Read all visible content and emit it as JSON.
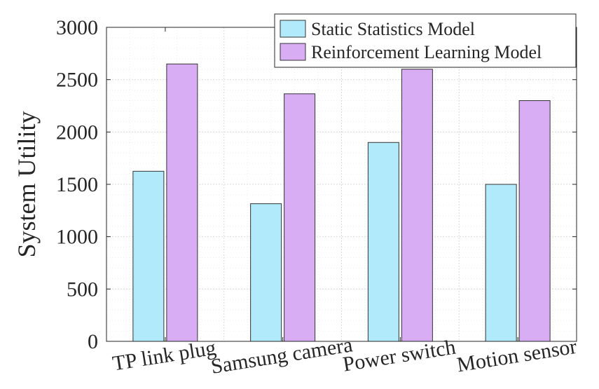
{
  "chart_data": {
    "type": "bar",
    "title": "",
    "xlabel": "",
    "ylabel": "System Utility",
    "categories": [
      "TP link plug",
      "Samsung camera",
      "Power switch",
      "Motion sensor"
    ],
    "series": [
      {
        "name": "Static Statistics Model",
        "values": [
          1625,
          1315,
          1900,
          1500
        ],
        "color": "#b1ebfb"
      },
      {
        "name": "Reinforcement Learning Model",
        "values": [
          2650,
          2365,
          2600,
          2300
        ],
        "color": "#d8adf3"
      }
    ],
    "ylim": [
      0,
      3000
    ],
    "yticks": [
      0,
      500,
      1000,
      1500,
      2000,
      2500,
      3000
    ],
    "grid": true,
    "minor_grid": true,
    "legend_position": "top-right"
  }
}
